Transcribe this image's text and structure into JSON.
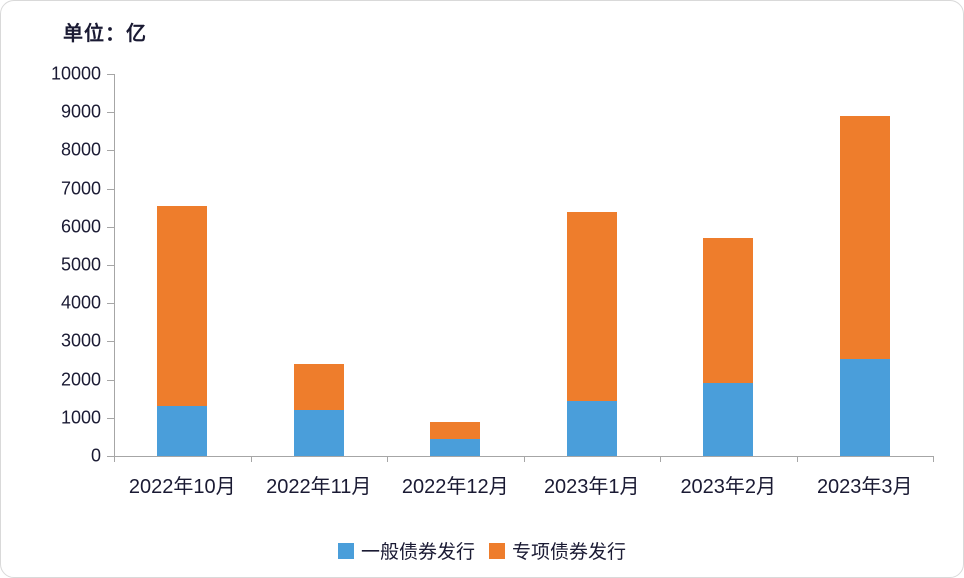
{
  "unit_label": "单位：亿",
  "chart_data": {
    "type": "bar",
    "stacked": true,
    "title": "",
    "unit": "亿",
    "categories": [
      "2022年10月",
      "2022年11月",
      "2022年12月",
      "2023年1月",
      "2023年2月",
      "2023年3月"
    ],
    "series": [
      {
        "name": "一般债券发行",
        "color": "#4a9eda",
        "values": [
          1300,
          1200,
          450,
          1450,
          1900,
          2550
        ]
      },
      {
        "name": "专项债券发行",
        "color": "#ee7d2c",
        "values": [
          5250,
          1200,
          450,
          4950,
          3800,
          6350
        ]
      }
    ],
    "totals": [
      6550,
      2400,
      900,
      6400,
      5700,
      8900
    ],
    "ylim": [
      0,
      10000
    ],
    "ytick_step": 1000,
    "ytick_labels": [
      "0",
      "1000",
      "2000",
      "3000",
      "4000",
      "5000",
      "6000",
      "7000",
      "8000",
      "9000",
      "10000"
    ],
    "grid": false,
    "legend_position": "bottom"
  }
}
